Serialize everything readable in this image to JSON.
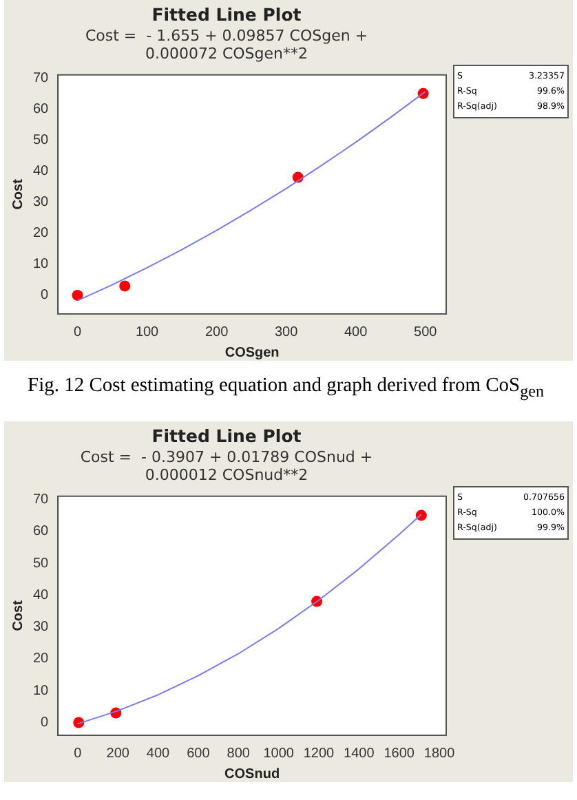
{
  "chart_data": [
    {
      "type": "scatter",
      "title": "Fitted Line Plot",
      "subtitle": "Cost =  - 1.655 + 0.09857 COSgen + 0.000072 COSgen**2",
      "xlabel": "COSgen",
      "ylabel": "Cost",
      "xlim": [
        -28,
        530
      ],
      "xticks": [
        0,
        100,
        200,
        300,
        400,
        500
      ],
      "ylim": [
        -6,
        71
      ],
      "yticks": [
        0,
        10,
        20,
        30,
        40,
        50,
        60,
        70
      ],
      "grid": false,
      "legend": false,
      "marker": "circle",
      "series": [
        {
          "type": "scatter",
          "color": "#ff0000",
          "x": [
            0,
            68,
            317,
            497
          ],
          "values": [
            0,
            3,
            38,
            65
          ]
        },
        {
          "type": "line",
          "color": "#7b7bef",
          "marker": "none",
          "line_style": "solid",
          "x": [
            0,
            50,
            100,
            150,
            200,
            250,
            300,
            350,
            400,
            450,
            500
          ],
          "values": [
            -1.7,
            3.4,
            8.9,
            14.7,
            20.9,
            27.5,
            34.4,
            41.7,
            49.3,
            57.3,
            65.6
          ]
        }
      ],
      "annotations": [
        "S 3.23357",
        "R-Sq 99.6%",
        "R-Sq(adj) 98.9%",
        "Fig. 12 Cost estimating equation and graph derived from CoS$_{gen}$"
      ]
    },
    {
      "type": "scatter",
      "title": "Fitted Line Plot",
      "subtitle": "Cost =  - 0.3907 + 0.01789 COSnud + 0.000012 COSnud**2",
      "xlabel": "COSnud",
      "ylabel": "Cost",
      "xlim": [
        -98,
        1834
      ],
      "xticks": [
        0,
        200,
        400,
        600,
        800,
        1000,
        1200,
        1400,
        1600,
        1800
      ],
      "ylim": [
        -4,
        71
      ],
      "yticks": [
        0,
        10,
        20,
        30,
        40,
        50,
        60,
        70
      ],
      "grid": false,
      "legend": false,
      "marker": "circle",
      "series": [
        {
          "type": "scatter",
          "color": "#ff0000",
          "x": [
            5,
            190,
            1190,
            1710
          ],
          "values": [
            0,
            3,
            38,
            65
          ]
        },
        {
          "type": "line",
          "color": "#7b7bef",
          "marker": "none",
          "line_style": "solid",
          "x": [
            0,
            200,
            400,
            600,
            800,
            1000,
            1200,
            1400,
            1600,
            1710
          ],
          "values": [
            -0.4,
            3.7,
            8.7,
            14.7,
            21.6,
            29.5,
            38.4,
            48.2,
            59.0,
            65.3
          ]
        }
      ],
      "annotations": [
        "S 0.707656",
        "R-Sq 100.0%",
        "R-Sq(adj) 99.9%"
      ]
    }
  ]
}
